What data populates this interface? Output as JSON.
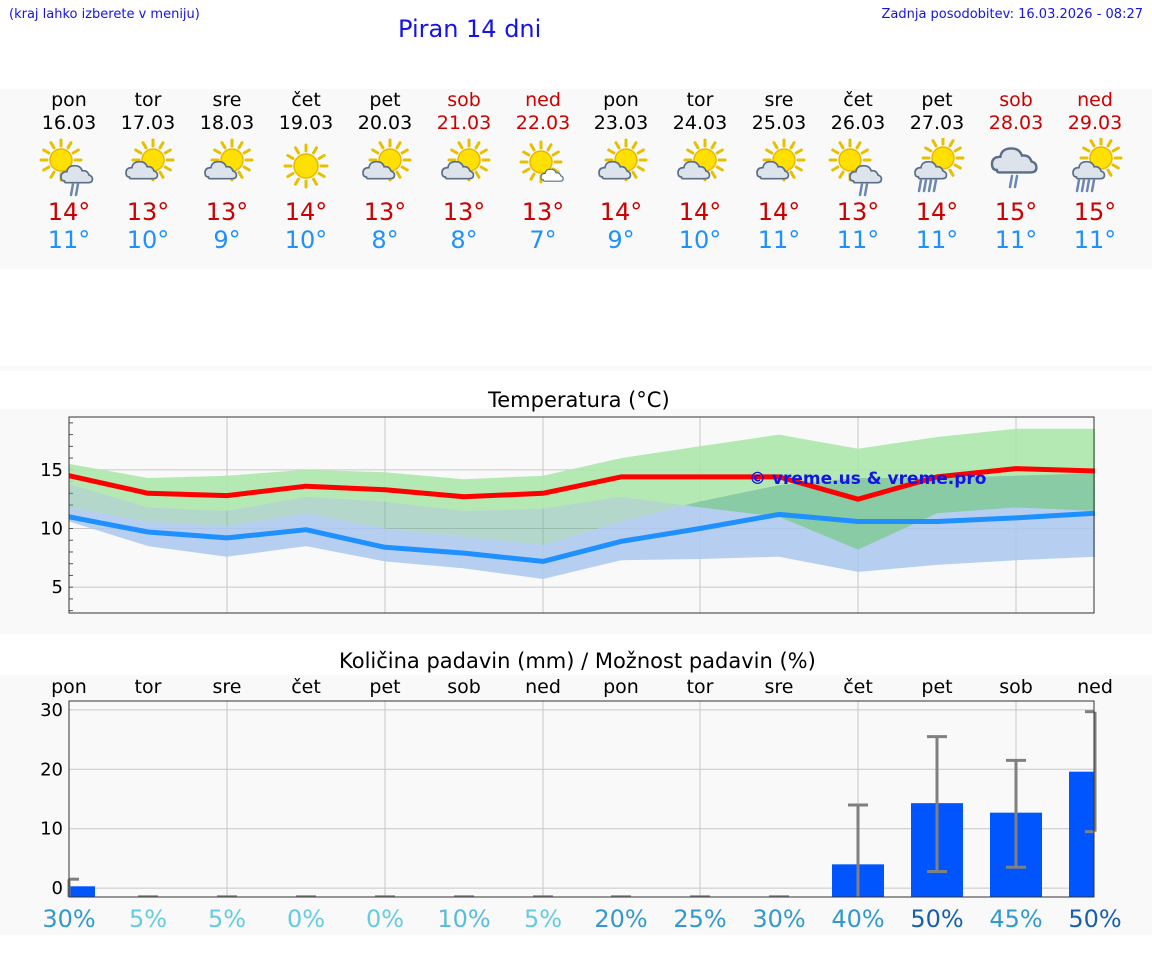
{
  "header": {
    "hint": "(kraj lahko izberete v meniju)",
    "title": "Piran 14 dni",
    "updated": "Zadnja posodobitev: 16.03.2026 - 08:27"
  },
  "days": [
    {
      "name": "pon",
      "date": "16.03",
      "weekend": false,
      "icon": "sun-cloud-rain-icon",
      "tmax": "14°",
      "tmin": "11°"
    },
    {
      "name": "tor",
      "date": "17.03",
      "weekend": false,
      "icon": "sun-cloud-icon",
      "tmax": "13°",
      "tmin": "10°"
    },
    {
      "name": "sre",
      "date": "18.03",
      "weekend": false,
      "icon": "sun-cloud-icon",
      "tmax": "13°",
      "tmin": "9°"
    },
    {
      "name": "čet",
      "date": "19.03",
      "weekend": false,
      "icon": "sun-icon",
      "tmax": "14°",
      "tmin": "10°"
    },
    {
      "name": "pet",
      "date": "20.03",
      "weekend": false,
      "icon": "sun-cloud-icon",
      "tmax": "13°",
      "tmin": "8°"
    },
    {
      "name": "sob",
      "date": "21.03",
      "weekend": true,
      "icon": "sun-cloud-icon",
      "tmax": "13°",
      "tmin": "8°"
    },
    {
      "name": "ned",
      "date": "22.03",
      "weekend": true,
      "icon": "sun-small-cloud-icon",
      "tmax": "13°",
      "tmin": "7°"
    },
    {
      "name": "pon",
      "date": "23.03",
      "weekend": false,
      "icon": "sun-cloud-icon",
      "tmax": "14°",
      "tmin": "9°"
    },
    {
      "name": "tor",
      "date": "24.03",
      "weekend": false,
      "icon": "sun-cloud-icon",
      "tmax": "14°",
      "tmin": "10°"
    },
    {
      "name": "sre",
      "date": "25.03",
      "weekend": false,
      "icon": "sun-cloud-icon",
      "tmax": "14°",
      "tmin": "11°"
    },
    {
      "name": "čet",
      "date": "26.03",
      "weekend": false,
      "icon": "sun-cloud-rain-icon",
      "tmax": "13°",
      "tmin": "11°"
    },
    {
      "name": "pet",
      "date": "27.03",
      "weekend": false,
      "icon": "sun-cloud-heavy-rain-icon",
      "tmax": "14°",
      "tmin": "11°"
    },
    {
      "name": "sob",
      "date": "28.03",
      "weekend": true,
      "icon": "cloud-rain-icon",
      "tmax": "15°",
      "tmin": "11°"
    },
    {
      "name": "ned",
      "date": "29.03",
      "weekend": true,
      "icon": "sun-cloud-heavy-rain-icon",
      "tmax": "15°",
      "tmin": "11°"
    }
  ],
  "chart_data": [
    {
      "type": "line",
      "title": "Temperatura (°C)",
      "watermark": "© vreme.us & vreme.pro",
      "ylim": [
        2.8,
        19.5
      ],
      "yticks": [
        5,
        10,
        15
      ],
      "x": [
        0,
        1,
        2,
        3,
        4,
        5,
        6,
        7,
        8,
        9,
        10,
        11,
        12,
        13
      ],
      "series": [
        {
          "name": "max",
          "color": "#ff0000",
          "values": [
            14.5,
            13.0,
            12.8,
            13.6,
            13.3,
            12.7,
            13.0,
            14.4,
            14.4,
            14.4,
            12.5,
            14.4,
            15.1,
            14.9
          ]
        },
        {
          "name": "max-range-high",
          "color": "#a8e6a8",
          "values": [
            15.5,
            14.3,
            14.5,
            15.0,
            14.8,
            14.2,
            14.5,
            16.0,
            17.0,
            18.0,
            16.8,
            17.8,
            18.5,
            18.5
          ]
        },
        {
          "name": "max-range-low",
          "color": "#a8e6a8",
          "values": [
            13.8,
            11.8,
            11.5,
            12.7,
            12.3,
            11.5,
            11.7,
            12.7,
            11.8,
            11.0,
            8.2,
            11.3,
            11.8,
            11.5
          ]
        },
        {
          "name": "min",
          "color": "#1e90ff",
          "values": [
            11.0,
            9.7,
            9.2,
            9.9,
            8.4,
            7.9,
            7.2,
            8.9,
            10.0,
            11.2,
            10.6,
            10.6,
            10.9,
            11.3
          ]
        },
        {
          "name": "min-range-high",
          "color": "#aac8f0",
          "values": [
            11.8,
            10.6,
            10.2,
            11.3,
            10.0,
            9.3,
            8.6,
            10.6,
            12.3,
            13.7,
            14.3,
            14.3,
            14.5,
            14.7
          ]
        },
        {
          "name": "min-range-low",
          "color": "#aac8f0",
          "values": [
            10.6,
            8.5,
            7.6,
            8.5,
            7.2,
            6.6,
            5.7,
            7.3,
            7.4,
            7.6,
            6.3,
            6.9,
            7.3,
            7.6
          ]
        }
      ]
    },
    {
      "type": "bar",
      "title": "Količina padavin (mm) / Možnost padavin (%)",
      "categories": [
        "pon",
        "tor",
        "sre",
        "čet",
        "pet",
        "sob",
        "ned",
        "pon",
        "tor",
        "sre",
        "čet",
        "pet",
        "sob",
        "ned"
      ],
      "ylim": [
        -1.5,
        31.5
      ],
      "yticks": [
        0,
        10,
        20,
        30
      ],
      "values": [
        0.3,
        0,
        0,
        0,
        0,
        0,
        0,
        0,
        0,
        0,
        4.0,
        14.3,
        12.7,
        19.6
      ],
      "error_low": [
        0,
        0,
        0,
        0,
        0,
        0,
        0,
        0,
        0,
        0,
        0,
        2.8,
        3.5,
        9.5
      ],
      "error_high": [
        1.5,
        0,
        0,
        0,
        0,
        0,
        0,
        0,
        0,
        0,
        14.0,
        25.5,
        21.5,
        29.7
      ],
      "probabilities": [
        "30%",
        "5%",
        "5%",
        "0%",
        "0%",
        "10%",
        "5%",
        "20%",
        "25%",
        "30%",
        "40%",
        "50%",
        "45%",
        "50%"
      ],
      "probability_colors": [
        "#3399cc",
        "#66ccdd",
        "#66ccdd",
        "#66ccdd",
        "#66ccdd",
        "#5bbbdd",
        "#66ccdd",
        "#3399cc",
        "#3399cc",
        "#3399cc",
        "#3399cc",
        "#1a5fa8",
        "#3399cc",
        "#1a5fa8"
      ],
      "bar_color": "#0055ff",
      "errorbar_color": "#808080"
    }
  ]
}
